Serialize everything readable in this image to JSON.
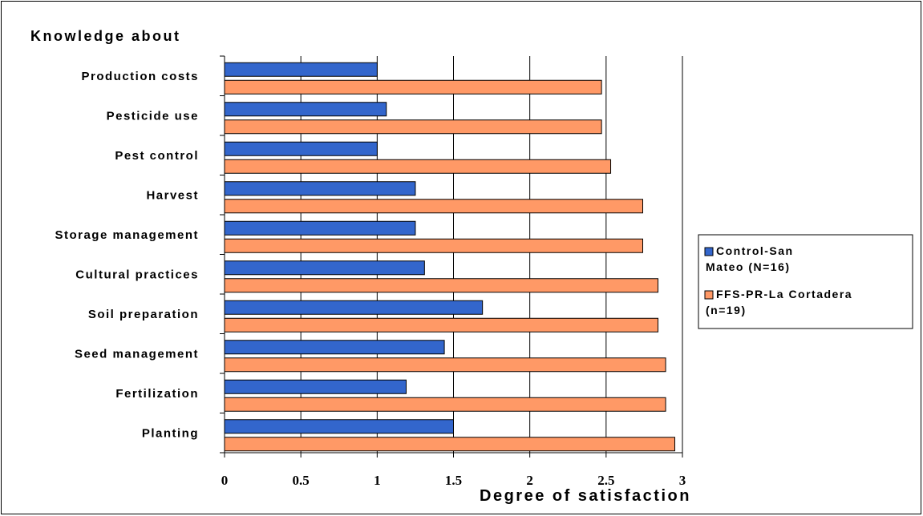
{
  "chart_data": {
    "type": "bar",
    "orientation": "horizontal",
    "title": "Knowledge about",
    "xlabel": "Degree of satisfaction",
    "ylabel": "",
    "xlim": [
      0,
      3
    ],
    "xticks": [
      "0",
      "0.5",
      "1",
      "1.5",
      "2",
      "2.5",
      "3"
    ],
    "grid": "vertical",
    "legend_position": "right",
    "categories": [
      "Production costs",
      "Pesticide use",
      "Pest control",
      "Harvest",
      "Storage management",
      "Cultural practices",
      "Soil preparation",
      "Seed management",
      "Fertilization",
      "Planting"
    ],
    "series": [
      {
        "name": "Control-San Mateo (N=16)",
        "legend_lines": [
          "Control-San",
          "Mateo (N=16)"
        ],
        "color": "#3366cc",
        "values": [
          1.0,
          1.06,
          1.0,
          1.25,
          1.25,
          1.31,
          1.69,
          1.44,
          1.19,
          1.5
        ]
      },
      {
        "name": "FFS-PR-La Cortadera (n=19)",
        "legend_lines": [
          "FFS-PR-La Cortadera",
          "(n=19)"
        ],
        "color": "#ff9966",
        "values": [
          2.47,
          2.47,
          2.53,
          2.74,
          2.74,
          2.84,
          2.84,
          2.89,
          2.89,
          2.95
        ]
      }
    ]
  }
}
